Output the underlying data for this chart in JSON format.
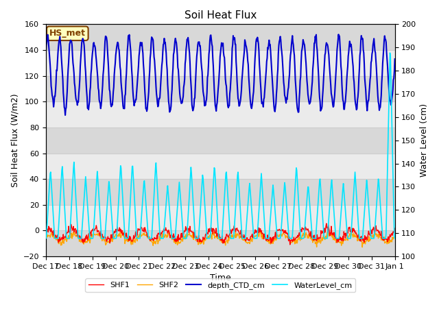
{
  "title": "Soil Heat Flux",
  "xlabel": "Time",
  "ylabel_left": "Soil Heat Flux (W/m2)",
  "ylabel_right": "Water Level (cm)",
  "ylim_left": [
    -20,
    160
  ],
  "ylim_right": [
    100,
    200
  ],
  "yticks_left": [
    -20,
    0,
    20,
    40,
    60,
    80,
    100,
    120,
    140,
    160
  ],
  "yticks_right": [
    100,
    110,
    120,
    130,
    140,
    150,
    160,
    170,
    180,
    190,
    200
  ],
  "xtick_labels": [
    "Dec 17",
    "Dec 18",
    "Dec 19",
    "Dec 20",
    "Dec 21",
    "Dec 22",
    "Dec 23",
    "Dec 24",
    "Dec 25",
    "Dec 26",
    "Dec 27",
    "Dec 28",
    "Dec 29",
    "Dec 30",
    "Dec 31",
    "Jan 1"
  ],
  "annotation_text": "HS_met",
  "annotation_bg": "#ffffc0",
  "annotation_border": "#804000",
  "colors": {
    "SHF1": "#ff0000",
    "SHF2": "#ffa500",
    "depth_CTD_cm": "#0000cd",
    "WaterLevel_cm": "#00e5ff"
  },
  "grid_color": "#cccccc",
  "band_colors": [
    "#d8d8d8",
    "#ebebeb"
  ],
  "legend_labels": [
    "SHF1",
    "SHF2",
    "depth_CTD_cm",
    "WaterLevel_cm"
  ]
}
